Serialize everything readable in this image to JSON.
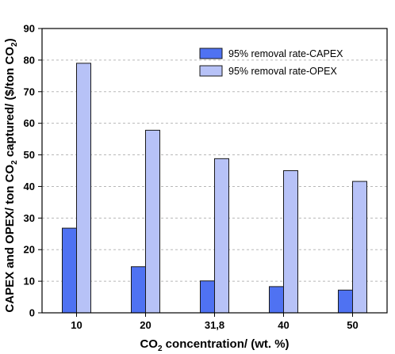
{
  "chart_data": {
    "type": "bar",
    "categories": [
      "10",
      "20",
      "31,8",
      "40",
      "50"
    ],
    "series": [
      {
        "name": "95% removal rate-CAPEX",
        "values": [
          26.8,
          14.6,
          10.1,
          8.3,
          7.2
        ],
        "color": "#4f72f2"
      },
      {
        "name": "95% removal rate-OPEX",
        "values": [
          79,
          57.8,
          48.8,
          45,
          41.6
        ],
        "color": "#b7c2f7"
      }
    ],
    "ylim": [
      0,
      90
    ],
    "yticks": [
      0,
      10,
      20,
      30,
      40,
      50,
      60,
      70,
      80,
      90
    ],
    "grid": true,
    "legend_position": "top-right",
    "xlabel": {
      "prefix": "CO",
      "sub": "2",
      "suffix": " concentration/ (wt. %)"
    },
    "ylabel": {
      "p1": "CAPEX and OPEX/ ton CO",
      "s1": "2",
      "p2": " captured/ ($/ton CO",
      "s2": "2",
      "p3": ")"
    }
  }
}
